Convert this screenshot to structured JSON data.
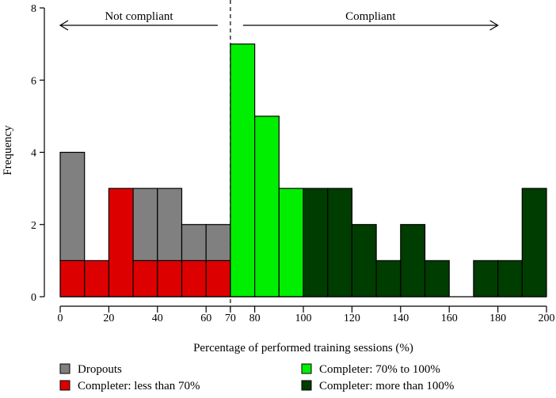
{
  "chart_data": {
    "type": "bar",
    "subtype": "stacked-histogram",
    "xlabel": "Percentage of performed training sessions (%)",
    "ylabel": "Frequency",
    "xlim": [
      0,
      200
    ],
    "ylim": [
      0,
      8
    ],
    "bin_width": 10,
    "x_ticks": [
      0,
      20,
      40,
      60,
      70,
      80,
      100,
      120,
      140,
      160,
      180,
      200
    ],
    "y_ticks": [
      0,
      2,
      4,
      6,
      8
    ],
    "threshold": 70,
    "annotations": [
      {
        "label": "Not compliant",
        "from": 70,
        "to": 0
      },
      {
        "label": "Compliant",
        "from": 70,
        "to": 180
      }
    ],
    "series": [
      {
        "name": "Dropouts",
        "color": "#808080",
        "bins": [
          [
            0,
            10,
            3
          ],
          [
            30,
            40,
            2
          ],
          [
            40,
            50,
            2
          ],
          [
            50,
            60,
            1
          ],
          [
            60,
            70,
            1
          ]
        ]
      },
      {
        "name": "Completer: less than 70%",
        "color": "#dd0000",
        "bins": [
          [
            0,
            10,
            1
          ],
          [
            10,
            20,
            1
          ],
          [
            20,
            30,
            3
          ],
          [
            30,
            40,
            1
          ],
          [
            40,
            50,
            1
          ],
          [
            50,
            60,
            1
          ],
          [
            60,
            70,
            1
          ]
        ]
      },
      {
        "name": "Completer: 70% to 100%",
        "color": "#00ee00",
        "bins": [
          [
            70,
            80,
            7
          ],
          [
            80,
            90,
            5
          ],
          [
            90,
            100,
            3
          ]
        ]
      },
      {
        "name": "Completer: more than 100%",
        "color": "#003d00",
        "bins": [
          [
            100,
            110,
            3
          ],
          [
            110,
            120,
            3
          ],
          [
            120,
            130,
            2
          ],
          [
            130,
            140,
            1
          ],
          [
            140,
            150,
            2
          ],
          [
            150,
            160,
            1
          ],
          [
            170,
            180,
            1
          ],
          [
            180,
            190,
            1
          ],
          [
            190,
            200,
            3
          ]
        ]
      }
    ],
    "stack_order": [
      "Completer: less than 70%",
      "Dropouts",
      "Completer: 70% to 100%",
      "Completer: more than 100%"
    ],
    "legend": {
      "placement": "bottom",
      "entries": [
        "Dropouts",
        "Completer: less than 70%",
        "Completer: 70% to 100%",
        "Completer: more than 100%"
      ]
    }
  }
}
